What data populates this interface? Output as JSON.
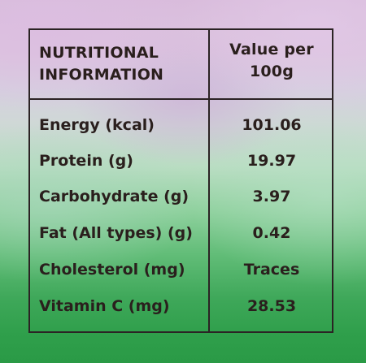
{
  "table": {
    "header": {
      "left_line1": "NUTRITIONAL",
      "left_line2": "INFORMATION",
      "right_line1": "Value per",
      "right_line2": "100g"
    },
    "rows": [
      {
        "label": "Energy (kcal)",
        "value": "101.06"
      },
      {
        "label": "Protein (g)",
        "value": "19.97"
      },
      {
        "label": "Carbohydrate (g)",
        "value": "3.97"
      },
      {
        "label": "Fat (All types) (g)",
        "value": "0.42"
      },
      {
        "label": "Cholesterol (mg)",
        "value": "Traces"
      },
      {
        "label": "Vitamin C (mg)",
        "value": "28.53"
      }
    ]
  },
  "colors": {
    "ink": "#2b2324",
    "background_top": "#d9bcdc",
    "background_bottom": "#2a9a46"
  }
}
